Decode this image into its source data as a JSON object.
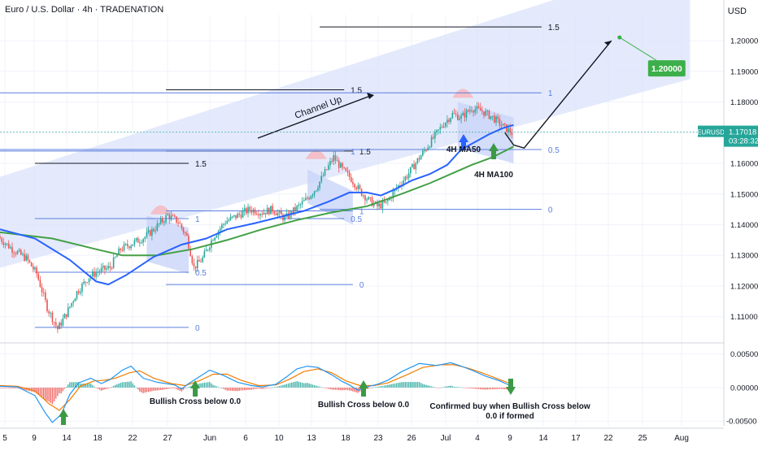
{
  "header": {
    "title": "Euro / U.S. Dollar · 4h · TRADENATION",
    "currency": "USD"
  },
  "colors": {
    "bull": "#26a69a",
    "bear": "#ef5350",
    "ma50": "#2962ff",
    "ma100": "#43a047",
    "channel": "#dbe3fb",
    "fib": "#5b7fde",
    "price_tag": "#26a69a",
    "target_tag": "#3daf4a",
    "arrow": "#3c9a46"
  },
  "chart_data": [
    {
      "type": "line",
      "title": "Euro / U.S. Dollar · 4h · TRADENATION",
      "symbol": "EURUSD",
      "timeframe": "4h",
      "last_price": "1.17018",
      "countdown": "03:28:32",
      "x_ticks": [
        "5",
        "9",
        "14",
        "18",
        "22",
        "27",
        "Jun",
        "6",
        "10",
        "13",
        "18",
        "23",
        "26",
        "Jul",
        "4",
        "9",
        "14",
        "17",
        "22",
        "25",
        "Aug"
      ],
      "y_ticks": [
        "1.20000",
        "1.19000",
        "1.18000",
        "1.17000",
        "1.16000",
        "1.15000",
        "1.14000",
        "1.13000",
        "1.12000",
        "1.11000"
      ],
      "ylim": [
        1.1025,
        1.2085
      ],
      "grid": true,
      "price_path": [
        [
          0,
          1.136
        ],
        [
          8,
          1.132
        ],
        [
          16,
          1.129
        ],
        [
          22,
          1.124
        ],
        [
          28,
          1.113
        ],
        [
          34,
          1.106
        ],
        [
          39,
          1.111
        ],
        [
          45,
          1.118
        ],
        [
          52,
          1.123
        ],
        [
          58,
          1.125
        ],
        [
          64,
          1.126
        ],
        [
          70,
          1.132
        ],
        [
          77,
          1.134
        ],
        [
          84,
          1.136
        ],
        [
          90,
          1.139
        ],
        [
          97,
          1.143
        ],
        [
          103,
          1.141
        ],
        [
          108,
          1.136
        ],
        [
          112,
          1.126
        ],
        [
          117,
          1.129
        ],
        [
          123,
          1.136
        ],
        [
          130,
          1.141
        ],
        [
          137,
          1.143
        ],
        [
          144,
          1.145
        ],
        [
          151,
          1.144
        ],
        [
          157,
          1.145
        ],
        [
          164,
          1.142
        ],
        [
          170,
          1.145
        ],
        [
          176,
          1.148
        ],
        [
          182,
          1.152
        ],
        [
          188,
          1.158
        ],
        [
          192,
          1.162
        ],
        [
          197,
          1.158
        ],
        [
          202,
          1.155
        ],
        [
          207,
          1.151
        ],
        [
          212,
          1.148
        ],
        [
          217,
          1.146
        ],
        [
          222,
          1.147
        ],
        [
          228,
          1.152
        ],
        [
          234,
          1.156
        ],
        [
          240,
          1.161
        ],
        [
          245,
          1.165
        ],
        [
          250,
          1.169
        ],
        [
          255,
          1.173
        ],
        [
          260,
          1.176
        ],
        [
          265,
          1.175
        ],
        [
          271,
          1.178
        ],
        [
          277,
          1.177
        ],
        [
          283,
          1.175
        ],
        [
          289,
          1.172
        ],
        [
          294,
          1.17
        ]
      ],
      "ma50": [
        [
          0,
          1.1385
        ],
        [
          20,
          1.1355
        ],
        [
          40,
          1.1285
        ],
        [
          55,
          1.1215
        ],
        [
          62,
          1.1205
        ],
        [
          72,
          1.1235
        ],
        [
          88,
          1.1295
        ],
        [
          104,
          1.1335
        ],
        [
          118,
          1.1355
        ],
        [
          130,
          1.1385
        ],
        [
          146,
          1.1405
        ],
        [
          160,
          1.1425
        ],
        [
          174,
          1.1445
        ],
        [
          188,
          1.1475
        ],
        [
          200,
          1.1505
        ],
        [
          210,
          1.1505
        ],
        [
          218,
          1.1495
        ],
        [
          226,
          1.1515
        ],
        [
          236,
          1.1545
        ],
        [
          246,
          1.1565
        ],
        [
          256,
          1.1595
        ],
        [
          264,
          1.1645
        ],
        [
          272,
          1.167
        ],
        [
          280,
          1.1695
        ],
        [
          288,
          1.1715
        ],
        [
          294,
          1.1725
        ]
      ],
      "ma100": [
        [
          0,
          1.1375
        ],
        [
          30,
          1.1355
        ],
        [
          55,
          1.132
        ],
        [
          70,
          1.13
        ],
        [
          90,
          1.13
        ],
        [
          110,
          1.132
        ],
        [
          130,
          1.135
        ],
        [
          150,
          1.1385
        ],
        [
          170,
          1.1415
        ],
        [
          190,
          1.144
        ],
        [
          210,
          1.146
        ],
        [
          220,
          1.148
        ],
        [
          232,
          1.1505
        ],
        [
          246,
          1.1535
        ],
        [
          258,
          1.1565
        ],
        [
          270,
          1.1595
        ],
        [
          282,
          1.162
        ],
        [
          294,
          1.1655
        ]
      ],
      "channel": {
        "lower": [
          [
            -6,
            1.125
          ],
          [
            395,
            1.1875
          ]
        ],
        "upper": [
          [
            -6,
            1.1545
          ],
          [
            395,
            1.2275
          ]
        ]
      },
      "projection": [
        [
          289,
          1.17
        ],
        [
          294,
          1.166
        ],
        [
          300,
          1.165
        ],
        [
          350,
          1.2
        ]
      ],
      "target": "1.20000",
      "fib_levels": [
        {
          "value": 1.16,
          "x0": 20,
          "x1": 108,
          "label": "1.5",
          "type": "black"
        },
        {
          "value": 1.142,
          "x0": 20,
          "x1": 108,
          "label": "1",
          "type": "blue"
        },
        {
          "value": 1.1245,
          "x0": 20,
          "x1": 108,
          "label": "0.5",
          "type": "blue"
        },
        {
          "value": 1.1065,
          "x0": 20,
          "x1": 108,
          "label": "0",
          "type": "blue"
        },
        {
          "value": 1.164,
          "x0": 95,
          "x1": 202,
          "label": "1.5",
          "type": "black"
        },
        {
          "value": 1.1445,
          "x0": 95,
          "x1": 202,
          "label": "1",
          "type": "blue"
        },
        {
          "value": 1.1205,
          "x0": 95,
          "x1": 202,
          "label": "0",
          "type": "blue"
        },
        {
          "value": 1.184,
          "x0": 95,
          "x1": 197,
          "label": "1.5",
          "type": "black"
        },
        {
          "value": 1.164,
          "x0": 0,
          "x1": 197,
          "label": "1",
          "type": "blue"
        },
        {
          "value": 1.142,
          "x0": 160,
          "x1": 197,
          "label": "0.5",
          "type": "blue"
        },
        {
          "value": 1.2045,
          "x0": 183,
          "x1": 310,
          "label": "1.5",
          "type": "black"
        },
        {
          "value": 1.183,
          "x0": 0,
          "x1": 310,
          "label": "1",
          "type": "blue"
        },
        {
          "value": 1.1645,
          "x0": 0,
          "x1": 310,
          "label": "0.5",
          "type": "blue"
        },
        {
          "value": 1.145,
          "x0": 183,
          "x1": 310,
          "label": "0",
          "type": "blue"
        }
      ],
      "annotations": {
        "channel": "Channel Up",
        "ma50": "4H MA50",
        "ma100": "4H MA100",
        "macd_1": "Bullish Cross below 0.0",
        "macd_2": "Bullish Cross below 0.0",
        "macd_3": "Confirmed buy when Bullish Cross below 0.0 if formed"
      }
    },
    {
      "type": "line",
      "title": "",
      "y_ticks": [
        "0.00500",
        "0.00000",
        "-0.00500"
      ],
      "ylim": [
        -0.0057,
        0.0063
      ],
      "macd": [
        [
          0,
          0.0002
        ],
        [
          10,
          0.0001
        ],
        [
          20,
          -0.0012
        ],
        [
          26,
          -0.0038
        ],
        [
          30,
          -0.0052
        ],
        [
          35,
          -0.004
        ],
        [
          40,
          -0.001
        ],
        [
          45,
          0.0007
        ],
        [
          52,
          0.0014
        ],
        [
          58,
          0.0006
        ],
        [
          63,
          0.0012
        ],
        [
          70,
          0.0026
        ],
        [
          75,
          0.0032
        ],
        [
          82,
          0.0014
        ],
        [
          90,
          0.0008
        ],
        [
          100,
          0.0004
        ],
        [
          104,
          -0.0002
        ],
        [
          108,
          0.0006
        ],
        [
          114,
          0.0016
        ],
        [
          120,
          0.0026
        ],
        [
          128,
          0.0018
        ],
        [
          136,
          0.0008
        ],
        [
          144,
          0.0003
        ],
        [
          150,
          0.0001
        ],
        [
          158,
          0.0005
        ],
        [
          164,
          0.0016
        ],
        [
          170,
          0.0028
        ],
        [
          176,
          0.0032
        ],
        [
          182,
          0.003
        ],
        [
          190,
          0.0019
        ],
        [
          196,
          0.0009
        ],
        [
          200,
          0.0004
        ],
        [
          205,
          -0.0004
        ],
        [
          210,
          0.0001
        ],
        [
          216,
          0.0005
        ],
        [
          222,
          0.0011
        ],
        [
          230,
          0.0024
        ],
        [
          240,
          0.0036
        ],
        [
          250,
          0.0033
        ],
        [
          258,
          0.0037
        ],
        [
          264,
          0.0032
        ],
        [
          270,
          0.0026
        ],
        [
          278,
          0.0017
        ],
        [
          286,
          0.001
        ],
        [
          292,
          0.0003
        ]
      ],
      "signal": [
        [
          0,
          0.0003
        ],
        [
          10,
          0.0002
        ],
        [
          20,
          -0.0005
        ],
        [
          28,
          -0.0024
        ],
        [
          34,
          -0.0034
        ],
        [
          40,
          -0.0018
        ],
        [
          46,
          0.0002
        ],
        [
          54,
          0.001
        ],
        [
          60,
          0.0011
        ],
        [
          66,
          0.0014
        ],
        [
          74,
          0.0022
        ],
        [
          80,
          0.0025
        ],
        [
          88,
          0.0014
        ],
        [
          98,
          0.0006
        ],
        [
          106,
          0.0003
        ],
        [
          114,
          0.001
        ],
        [
          122,
          0.002
        ],
        [
          130,
          0.002
        ],
        [
          138,
          0.0011
        ],
        [
          148,
          0.0003
        ],
        [
          158,
          0.0004
        ],
        [
          166,
          0.0013
        ],
        [
          174,
          0.0024
        ],
        [
          182,
          0.0028
        ],
        [
          190,
          0.0022
        ],
        [
          198,
          0.001
        ],
        [
          206,
          0.0003
        ],
        [
          214,
          0.0003
        ],
        [
          222,
          0.0007
        ],
        [
          232,
          0.0018
        ],
        [
          242,
          0.003
        ],
        [
          252,
          0.0034
        ],
        [
          260,
          0.0034
        ],
        [
          268,
          0.0029
        ],
        [
          276,
          0.0022
        ],
        [
          284,
          0.0014
        ],
        [
          292,
          0.0006
        ]
      ]
    }
  ]
}
